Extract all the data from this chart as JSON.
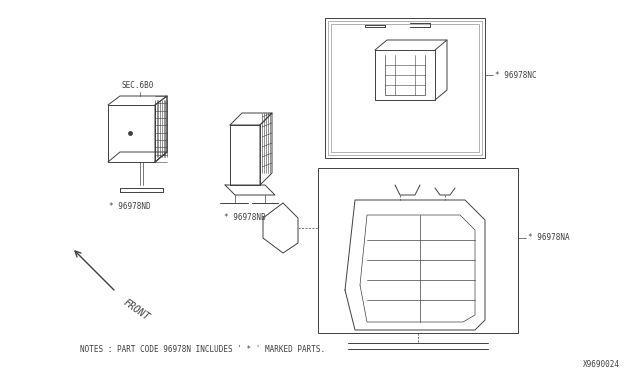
{
  "bg_color": "#ffffff",
  "line_color": "#404040",
  "note_text": "NOTES : PART CODE 96978N INCLUDES ' * ' MARKED PARTS.",
  "diagram_id": "X9690024",
  "label_sec6b0": "SEC.6B0",
  "label_nd": "* 96978ND",
  "label_nb": "* 96978NB",
  "label_nc": "* 96978NC",
  "label_na": "* 96978NA",
  "label_front": "FRONT"
}
